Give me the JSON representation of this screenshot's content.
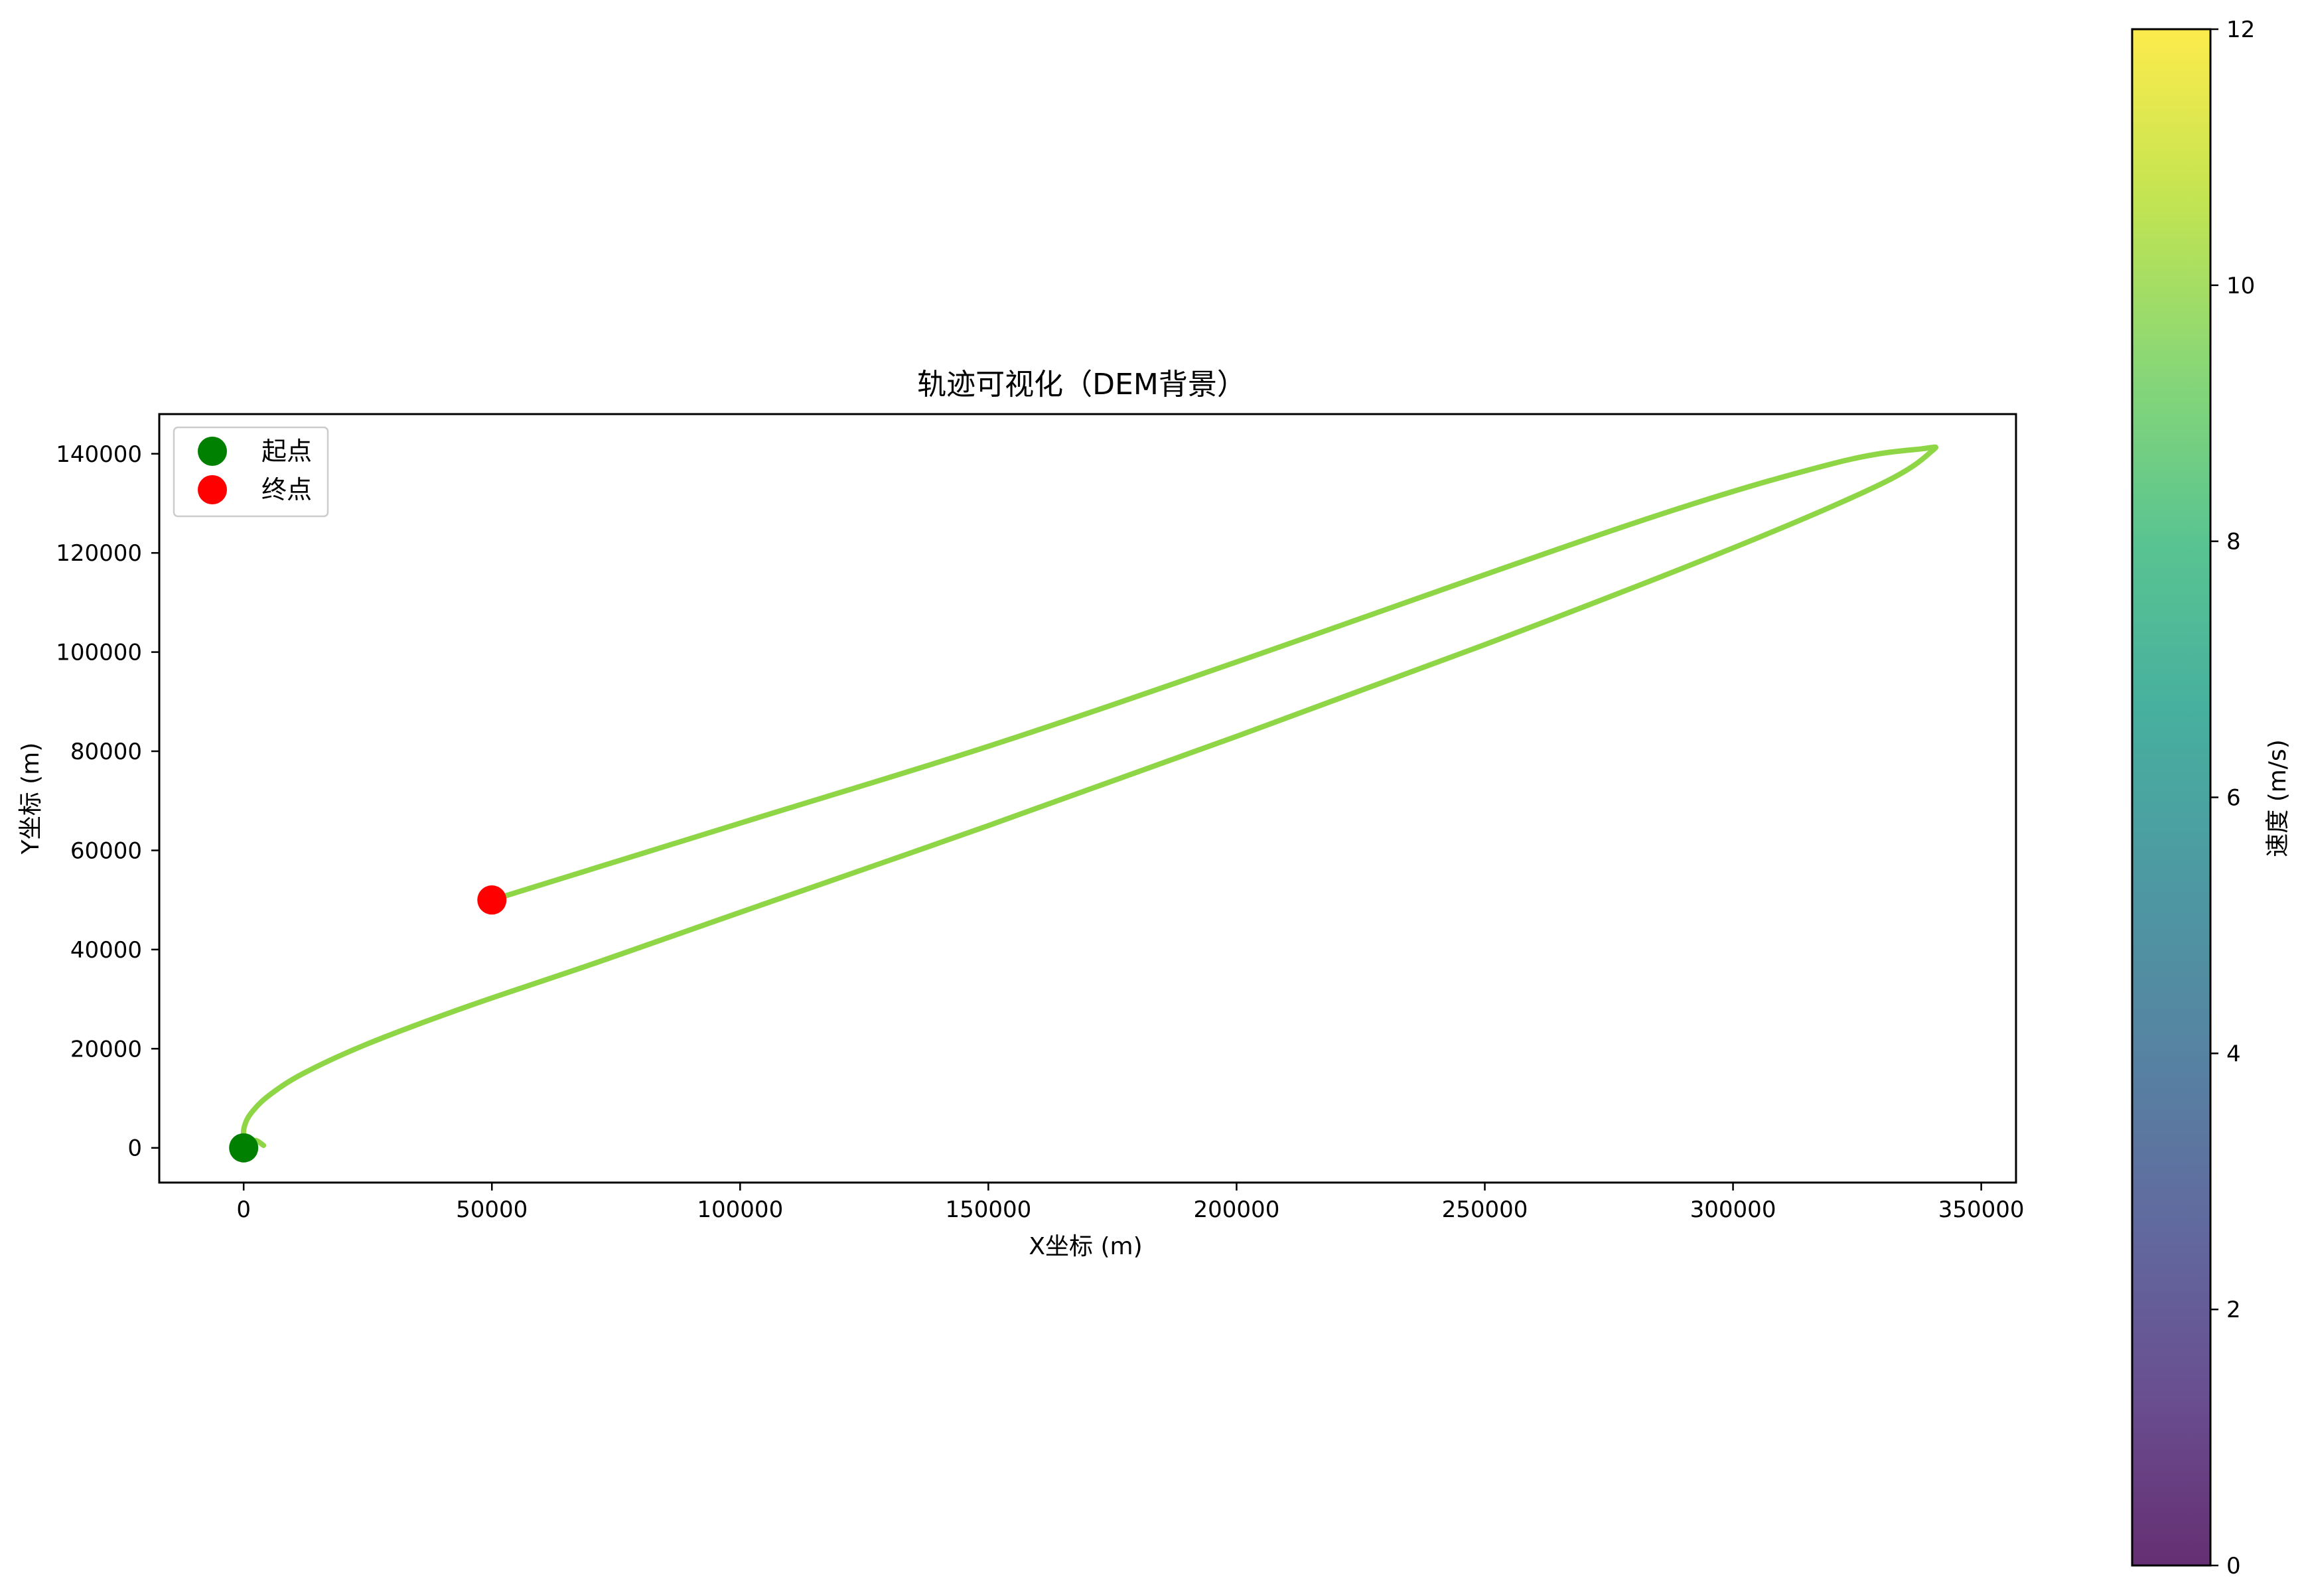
{
  "chart_data": {
    "type": "line",
    "title": "轨迹可视化（DEM背景）",
    "xlabel": "X坐标 (m)",
    "ylabel": "Y坐标 (m)",
    "xlim": [
      -17000,
      357000
    ],
    "ylim": [
      -7000,
      148000
    ],
    "xticks": [
      0,
      50000,
      100000,
      150000,
      200000,
      250000,
      300000,
      350000
    ],
    "yticks": [
      0,
      20000,
      40000,
      60000,
      80000,
      100000,
      120000,
      140000
    ],
    "xtick_labels": [
      "0",
      "50000",
      "100000",
      "150000",
      "200000",
      "250000",
      "300000",
      "350000"
    ],
    "ytick_labels": [
      "0",
      "20000",
      "40000",
      "60000",
      "80000",
      "100000",
      "120000",
      "140000"
    ],
    "grid": false,
    "legend": {
      "placement": "upper-left",
      "entries": [
        {
          "label": "起点",
          "color": "#008000"
        },
        {
          "label": "终点",
          "color": "#ff0000"
        }
      ]
    },
    "series": [
      {
        "color": "#8ed645",
        "x": [
          4000,
          2500,
          1500,
          500,
          0,
          200,
          1500,
          5000,
          12000,
          25000,
          45000,
          70000,
          100000,
          150000,
          200000,
          250000,
          300000,
          330000,
          340000,
          338000,
          320000,
          280000,
          200000,
          150000,
          100000,
          50000
        ],
        "y": [
          500,
          1500,
          1000,
          1200,
          2500,
          4500,
          7000,
          10500,
          15000,
          21000,
          28500,
          37000,
          47500,
          65000,
          83000,
          101500,
          121000,
          134000,
          140500,
          141000,
          138000,
          126000,
          98000,
          81000,
          65500,
          50000
        ]
      }
    ],
    "points": [
      {
        "name": "起点",
        "x": 0,
        "y": 0,
        "color": "#008000"
      },
      {
        "name": "终点",
        "x": 50000,
        "y": 50000,
        "color": "#ff0000"
      }
    ],
    "colorbar": {
      "label": "速度 (m/s)",
      "range": [
        0,
        12
      ],
      "ticks": [
        0,
        2,
        4,
        6,
        8,
        10,
        12
      ],
      "tick_labels": [
        "0",
        "2",
        "4",
        "6",
        "8",
        "10",
        "12"
      ],
      "colormap": "viridis",
      "colors": [
        "#440154",
        "#482878",
        "#3e4989",
        "#31688e",
        "#26828e",
        "#1f9e89",
        "#35b779",
        "#6ece58",
        "#b5de2b",
        "#fde725"
      ]
    }
  }
}
